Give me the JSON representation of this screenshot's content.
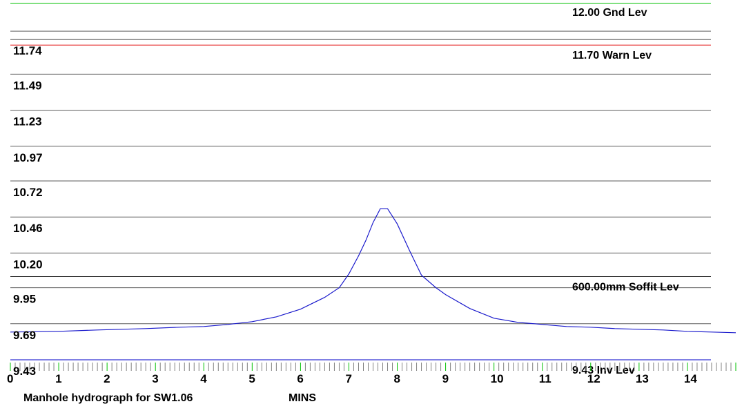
{
  "colors": {
    "background": "#ffffff",
    "grid": "#5a5a5a",
    "ground_level": "#00c000",
    "warning_level": "#e00000",
    "soffit_level": "#202020",
    "invert_level": "#0000c8",
    "hydrograph": "#1a1acc",
    "minor_ticks": "#808080",
    "major_ticks": "#00c000"
  },
  "footer": {
    "title": "Manhole hydrograph for SW1.06",
    "units": "MINS"
  },
  "chart_data": {
    "type": "line",
    "title": "Manhole hydrograph for SW1.06",
    "xlabel": "MINS",
    "ylabel": "",
    "xlim": [
      0,
      15
    ],
    "ylim": [
      9.43,
      12.0
    ],
    "x_ticks": [
      0,
      1,
      2,
      3,
      4,
      5,
      6,
      7,
      8,
      9,
      10,
      11,
      12,
      13,
      14
    ],
    "x_minor_tick_step": 0.1,
    "y_ticks": [
      {
        "value": 9.43,
        "label": "9.43"
      },
      {
        "value": 9.69,
        "label": "9.69"
      },
      {
        "value": 9.95,
        "label": "9.95"
      },
      {
        "value": 10.2,
        "label": "10.20"
      },
      {
        "value": 10.46,
        "label": "10.46"
      },
      {
        "value": 10.72,
        "label": "10.72"
      },
      {
        "value": 10.97,
        "label": "10.97"
      },
      {
        "value": 11.23,
        "label": "11.23"
      },
      {
        "value": 11.49,
        "label": "11.49"
      },
      {
        "value": 11.74,
        "label": "11.74"
      }
    ],
    "grid": true,
    "reference_lines": [
      {
        "id": "gnd",
        "value": 12.0,
        "label": "12.00 Gnd Lev",
        "color_key": "ground_level"
      },
      {
        "id": "warn",
        "value": 11.7,
        "label": "11.70 Warn Lev",
        "color_key": "warning_level"
      },
      {
        "id": "soffit",
        "value": 10.03,
        "label": "600.00mm Soffit Lev",
        "color_key": "soffit_level"
      },
      {
        "id": "inv",
        "value": 9.43,
        "label": "9.43 Inv Lev",
        "color_key": "invert_level"
      }
    ],
    "series": [
      {
        "x": [
          0,
          1,
          1.8,
          2.8,
          3.5,
          4.0,
          4.5,
          5.0,
          5.5,
          6.0,
          6.5,
          6.8,
          7.0,
          7.2,
          7.35,
          7.5,
          7.65,
          7.8,
          8.0,
          8.25,
          8.5,
          8.8,
          9.0,
          9.5,
          10.0,
          10.5,
          11.0,
          11.5,
          12.0,
          12.5,
          13.0,
          13.5,
          14.0,
          14.5,
          15.0
        ],
        "y": [
          9.63,
          9.635,
          9.645,
          9.655,
          9.665,
          9.67,
          9.685,
          9.705,
          9.74,
          9.795,
          9.88,
          9.95,
          10.05,
          10.18,
          10.29,
          10.42,
          10.52,
          10.52,
          10.41,
          10.22,
          10.04,
          9.95,
          9.9,
          9.8,
          9.73,
          9.7,
          9.685,
          9.67,
          9.665,
          9.655,
          9.65,
          9.645,
          9.635,
          9.63,
          9.625
        ]
      }
    ]
  }
}
